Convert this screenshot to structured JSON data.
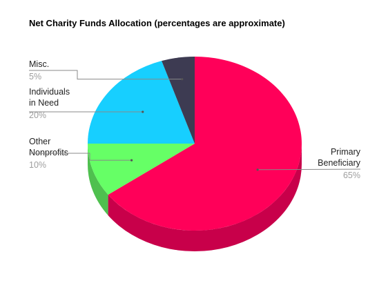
{
  "chart_data": {
    "type": "pie",
    "title": "Net Charity Funds Allocation (percentages are approximate)",
    "style": "3d",
    "slices": [
      {
        "name": "Primary Beneficiary",
        "label_lines": [
          "Primary",
          "Beneficiary"
        ],
        "pct_label": "65%",
        "value": 65,
        "color": "#ff0059",
        "side_color": "#c8004a"
      },
      {
        "name": "Other Nonprofits",
        "label_lines": [
          "Other",
          "Nonprofits"
        ],
        "pct_label": "10%",
        "value": 10,
        "color": "#66ff66",
        "side_color": "#4fc04f"
      },
      {
        "name": "Individuals in Need",
        "label_lines": [
          "Individuals",
          "in Need"
        ],
        "pct_label": "20%",
        "value": 20,
        "color": "#17cfff",
        "side_color": "#12a3cc"
      },
      {
        "name": "Misc.",
        "label_lines": [
          "Misc."
        ],
        "pct_label": "5%",
        "value": 5,
        "color": "#3d3b52",
        "side_color": "#2c2a3d"
      }
    ]
  }
}
